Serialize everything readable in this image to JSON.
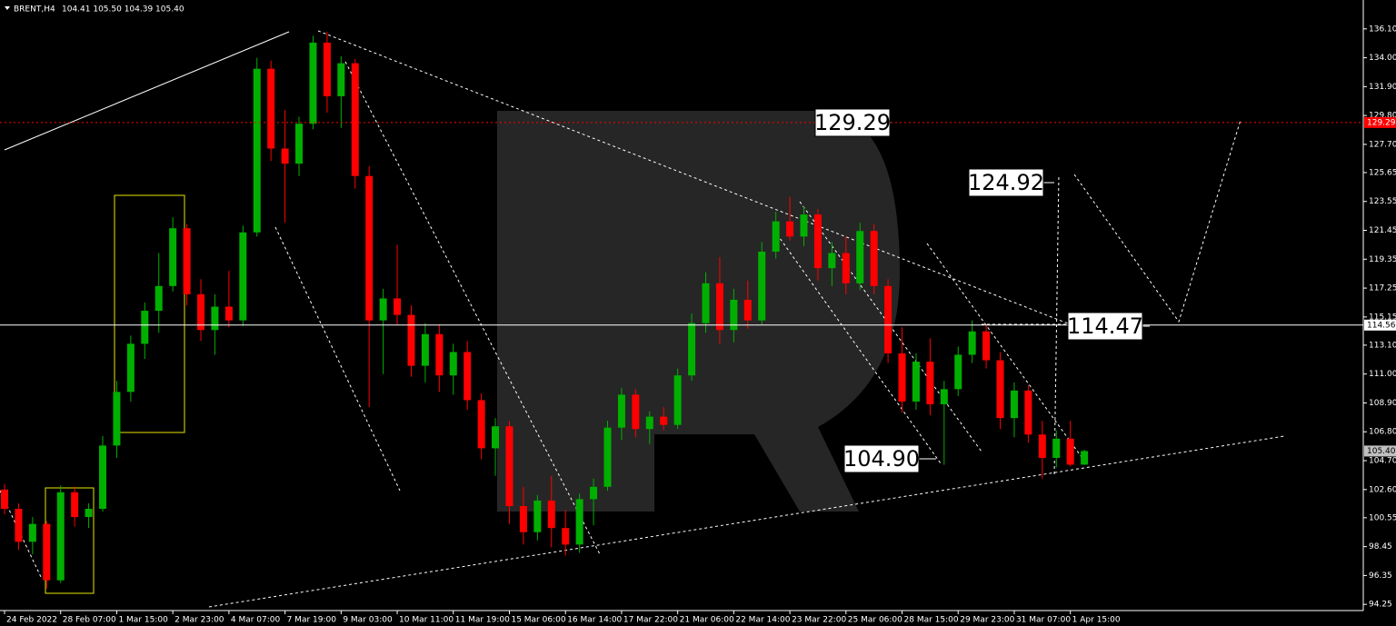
{
  "chart_data": {
    "type": "candlestick",
    "title": "BRENT,H4",
    "subtitle": "104.41 105.50 104.39 105.40",
    "categories": [
      "24 Feb 2022",
      null,
      null,
      null,
      "28 Feb 07:00",
      null,
      null,
      null,
      "1 Mar 15:00",
      null,
      null,
      null,
      "2 Mar 23:00",
      null,
      null,
      null,
      "4 Mar 07:00",
      null,
      null,
      null,
      "7 Mar 19:00",
      null,
      null,
      null,
      "9 Mar 03:00",
      null,
      null,
      null,
      "10 Mar 11:00",
      null,
      null,
      null,
      "11 Mar 19:00",
      null,
      null,
      null,
      "15 Mar 06:00",
      null,
      null,
      null,
      "16 Mar 14:00",
      null,
      null,
      null,
      "17 Mar 22:00",
      null,
      null,
      null,
      "21 Mar 06:00",
      null,
      null,
      null,
      "22 Mar 14:00",
      null,
      null,
      null,
      "23 Mar 22:00",
      null,
      null,
      null,
      "25 Mar 06:00",
      null,
      null,
      null,
      "28 Mar 15:00",
      null,
      null,
      null,
      "29 Mar 23:00",
      null,
      null,
      null,
      "31 Mar 07:00",
      null,
      null,
      null,
      "1 Apr 15:00",
      null
    ],
    "candles": [
      [
        102.6,
        103.0,
        100.8,
        101.2
      ],
      [
        101.2,
        101.6,
        98.2,
        98.8
      ],
      [
        98.8,
        100.6,
        97.9,
        100.1
      ],
      [
        100.1,
        100.3,
        95.4,
        96.0
      ],
      [
        96.0,
        102.9,
        95.8,
        102.4
      ],
      [
        102.4,
        102.8,
        99.9,
        100.6
      ],
      [
        100.6,
        101.6,
        99.8,
        101.2
      ],
      [
        101.2,
        106.5,
        101.0,
        105.8
      ],
      [
        105.8,
        110.5,
        104.9,
        109.7
      ],
      [
        109.7,
        113.8,
        109.0,
        113.2
      ],
      [
        113.2,
        116.2,
        112.1,
        115.6
      ],
      [
        115.6,
        119.8,
        114.0,
        117.4
      ],
      [
        117.4,
        122.4,
        117.0,
        121.6
      ],
      [
        121.6,
        121.9,
        116.0,
        116.8
      ],
      [
        116.8,
        117.9,
        113.4,
        114.2
      ],
      [
        114.2,
        116.8,
        112.4,
        115.9
      ],
      [
        115.9,
        118.5,
        114.4,
        114.9
      ],
      [
        114.9,
        121.8,
        114.5,
        121.3
      ],
      [
        121.3,
        134.0,
        121.0,
        133.2
      ],
      [
        133.2,
        133.8,
        126.5,
        127.4
      ],
      [
        127.4,
        130.2,
        122.0,
        126.3
      ],
      [
        126.3,
        129.7,
        125.4,
        129.2
      ],
      [
        129.2,
        135.6,
        128.8,
        135.1
      ],
      [
        135.1,
        135.9,
        130.0,
        131.2
      ],
      [
        131.2,
        134.1,
        128.9,
        133.6
      ],
      [
        133.6,
        133.9,
        124.5,
        125.4
      ],
      [
        125.4,
        126.1,
        108.6,
        114.9
      ],
      [
        114.9,
        117.2,
        111.0,
        116.5
      ],
      [
        116.5,
        120.4,
        114.6,
        115.3
      ],
      [
        115.3,
        116.0,
        110.8,
        111.6
      ],
      [
        111.6,
        114.7,
        110.4,
        113.9
      ],
      [
        113.9,
        114.6,
        109.7,
        110.9
      ],
      [
        110.9,
        113.2,
        109.5,
        112.6
      ],
      [
        112.6,
        113.4,
        108.4,
        109.1
      ],
      [
        109.1,
        109.6,
        104.8,
        105.6
      ],
      [
        105.6,
        107.8,
        103.6,
        107.2
      ],
      [
        107.2,
        107.6,
        100.1,
        101.4
      ],
      [
        101.4,
        102.8,
        98.6,
        99.5
      ],
      [
        99.5,
        102.2,
        98.9,
        101.8
      ],
      [
        101.8,
        103.6,
        98.4,
        99.8
      ],
      [
        99.8,
        101.1,
        97.8,
        98.6
      ],
      [
        98.6,
        102.3,
        98.0,
        101.9
      ],
      [
        101.9,
        103.4,
        100.0,
        102.8
      ],
      [
        102.8,
        107.6,
        102.5,
        107.1
      ],
      [
        107.1,
        110.0,
        106.2,
        109.5
      ],
      [
        109.5,
        109.9,
        106.4,
        107.0
      ],
      [
        107.0,
        108.3,
        105.9,
        107.9
      ],
      [
        107.9,
        108.6,
        106.9,
        107.3
      ],
      [
        107.3,
        111.4,
        107.0,
        110.9
      ],
      [
        110.9,
        115.4,
        110.5,
        114.7
      ],
      [
        114.7,
        118.4,
        114.0,
        117.6
      ],
      [
        117.6,
        119.5,
        113.2,
        114.2
      ],
      [
        114.2,
        117.2,
        113.3,
        116.4
      ],
      [
        116.4,
        117.8,
        114.3,
        114.9
      ],
      [
        114.9,
        120.6,
        114.6,
        119.9
      ],
      [
        119.9,
        122.8,
        119.4,
        122.1
      ],
      [
        122.1,
        123.9,
        120.7,
        121.0
      ],
      [
        121.0,
        123.2,
        120.3,
        122.6
      ],
      [
        122.6,
        123.0,
        117.8,
        118.7
      ],
      [
        118.7,
        120.6,
        117.4,
        119.8
      ],
      [
        119.8,
        121.0,
        116.8,
        117.6
      ],
      [
        117.6,
        122.0,
        117.1,
        121.4
      ],
      [
        121.4,
        121.9,
        116.8,
        117.4
      ],
      [
        117.4,
        117.9,
        111.8,
        112.5
      ],
      [
        112.5,
        114.4,
        108.2,
        109.0
      ],
      [
        109.0,
        112.5,
        108.4,
        111.9
      ],
      [
        111.9,
        113.6,
        108.0,
        108.8
      ],
      [
        108.8,
        110.5,
        104.4,
        109.9
      ],
      [
        109.9,
        113.0,
        109.4,
        112.4
      ],
      [
        112.4,
        114.9,
        111.8,
        114.1
      ],
      [
        114.1,
        114.6,
        111.4,
        112.0
      ],
      [
        112.0,
        112.6,
        107.0,
        107.8
      ],
      [
        107.8,
        110.4,
        106.4,
        109.8
      ],
      [
        109.8,
        110.2,
        106.0,
        106.6
      ],
      [
        106.6,
        107.6,
        103.4,
        104.9
      ],
      [
        104.9,
        106.9,
        104.2,
        106.3
      ],
      [
        106.3,
        107.6,
        104.3,
        104.41
      ],
      [
        104.41,
        105.5,
        104.39,
        105.4
      ]
    ],
    "up_color": "#00b000",
    "down_color": "#ff0000",
    "ylim": [
      93.8,
      138.2
    ],
    "yticks": [
      {
        "value": 136.1,
        "label": "136.10"
      },
      {
        "value": 134,
        "label": "134.00"
      },
      {
        "value": 131.9,
        "label": "131.90"
      },
      {
        "value": 129.8,
        "label": "129.80"
      },
      {
        "value": 127.7,
        "label": "127.70"
      },
      125.65,
      123.55,
      121.45,
      119.35,
      117.25,
      115.15,
      {
        "value": 113.1,
        "label": "113.10"
      },
      {
        "value": 111,
        "label": "111.00"
      },
      {
        "value": 108.9,
        "label": "108.90"
      },
      {
        "value": 106.8,
        "label": "106.80"
      },
      {
        "value": 104.7,
        "label": "104.70"
      },
      {
        "value": 102.6,
        "label": "102.60"
      },
      100.55,
      98.45,
      96.35,
      94.25
    ],
    "price_lines": [
      {
        "value": 129.29,
        "color": "#ff0000",
        "dashed": true
      },
      {
        "value": 114.56,
        "color": "#ffffff",
        "dashed": false
      },
      {
        "value": {
          "value": 105.4,
          "label": "105.40"
        },
        "color": "#c0c0c0",
        "tag_only": true
      }
    ],
    "annotations": [
      "129.29",
      "124.92",
      "114.47",
      "104.90"
    ]
  }
}
